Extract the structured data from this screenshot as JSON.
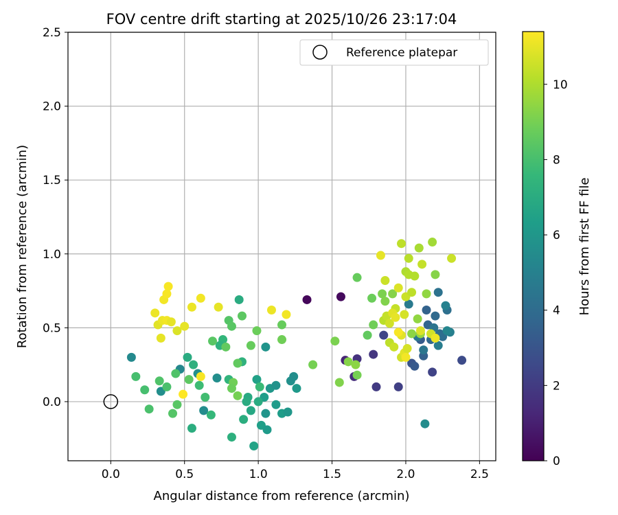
{
  "chart_data": {
    "type": "scatter",
    "title": "FOV centre drift starting at 2025/10/26 23:17:04",
    "xlabel": "Angular distance from reference (arcmin)",
    "ylabel": "Rotation from reference (arcmin)",
    "xlim": [
      -0.29,
      2.61
    ],
    "ylim": [
      -0.4,
      2.5
    ],
    "xticks": [
      0.0,
      0.5,
      1.0,
      1.5,
      2.0,
      2.5
    ],
    "xtick_labels": [
      "0.0",
      "0.5",
      "1.0",
      "1.5",
      "2.0",
      "2.5"
    ],
    "yticks": [
      0.0,
      0.5,
      1.0,
      1.5,
      2.0,
      2.5
    ],
    "ytick_labels": [
      "0.0",
      "0.5",
      "1.0",
      "1.5",
      "2.0",
      "2.5"
    ],
    "grid": true,
    "legend": {
      "position": "top-right",
      "label": "Reference platepar"
    },
    "reference": {
      "x": 0.0,
      "y": 0.0
    },
    "colorbar": {
      "label": "Hours from first FF file",
      "range": [
        0,
        11.4
      ],
      "ticks": [
        0,
        2,
        4,
        6,
        8,
        10
      ],
      "tick_labels": [
        "0",
        "2",
        "4",
        "6",
        "8",
        "10"
      ],
      "colormap": [
        "#440154",
        "#482878",
        "#3e4989",
        "#31688e",
        "#26828e",
        "#1f9e89",
        "#35b779",
        "#6ece58",
        "#b5de2b",
        "#fde725"
      ]
    },
    "points": [
      [
        1.33,
        0.69,
        0.2
      ],
      [
        1.56,
        0.71,
        0.3
      ],
      [
        1.59,
        0.28,
        1.2
      ],
      [
        1.65,
        0.17,
        1.5
      ],
      [
        1.67,
        0.29,
        1.7
      ],
      [
        1.78,
        0.32,
        1.8
      ],
      [
        1.8,
        0.1,
        2.0
      ],
      [
        1.95,
        0.1,
        2.2
      ],
      [
        2.18,
        0.2,
        2.3
      ],
      [
        2.38,
        0.28,
        2.6
      ],
      [
        1.85,
        0.45,
        2.4
      ],
      [
        2.04,
        0.26,
        3.0
      ],
      [
        2.06,
        0.24,
        3.2
      ],
      [
        2.1,
        0.42,
        3.3
      ],
      [
        2.12,
        0.31,
        3.5
      ],
      [
        2.14,
        0.62,
        3.6
      ],
      [
        2.15,
        0.52,
        3.7
      ],
      [
        2.17,
        0.42,
        3.8
      ],
      [
        2.2,
        0.58,
        3.9
      ],
      [
        2.23,
        0.46,
        4.0
      ],
      [
        2.25,
        0.44,
        4.1
      ],
      [
        2.28,
        0.62,
        4.2
      ],
      [
        2.22,
        0.74,
        4.3
      ],
      [
        2.19,
        0.5,
        4.4
      ],
      [
        2.12,
        0.35,
        4.5
      ],
      [
        2.08,
        0.44,
        4.6
      ],
      [
        2.02,
        0.66,
        4.7
      ],
      [
        2.22,
        0.38,
        4.8
      ],
      [
        2.3,
        0.47,
        4.9
      ],
      [
        2.27,
        0.65,
        5.0
      ],
      [
        2.28,
        0.48,
        5.2
      ],
      [
        2.13,
        -0.15,
        5.5
      ],
      [
        0.14,
        0.3,
        5.4
      ],
      [
        0.34,
        0.07,
        5.6
      ],
      [
        0.47,
        0.22,
        5.3
      ],
      [
        0.59,
        0.19,
        5.7
      ],
      [
        0.63,
        -0.06,
        5.5
      ],
      [
        0.72,
        0.16,
        5.6
      ],
      [
        1.05,
        0.37,
        5.9
      ],
      [
        1.08,
        0.09,
        6.0
      ],
      [
        1.12,
        0.11,
        5.8
      ],
      [
        1.22,
        0.14,
        5.7
      ],
      [
        1.24,
        0.17,
        5.6
      ],
      [
        1.26,
        0.09,
        6.1
      ],
      [
        1.12,
        -0.02,
        6.2
      ],
      [
        1.16,
        -0.08,
        6.3
      ],
      [
        1.2,
        -0.07,
        6.0
      ],
      [
        1.05,
        -0.08,
        5.9
      ],
      [
        1.02,
        -0.16,
        6.4
      ],
      [
        1.04,
        0.03,
        6.3
      ],
      [
        1.06,
        -0.19,
        6.2
      ],
      [
        0.99,
        0.15,
        6.5
      ],
      [
        0.97,
        -0.3,
        6.6
      ],
      [
        0.95,
        -0.06,
        6.8
      ],
      [
        0.93,
        0.03,
        6.9
      ],
      [
        0.92,
        0.0,
        7.0
      ],
      [
        0.9,
        -0.12,
        7.1
      ],
      [
        0.82,
        -0.24,
        7.2
      ],
      [
        0.8,
        0.15,
        7.4
      ],
      [
        0.76,
        0.42,
        7.5
      ],
      [
        0.74,
        0.38,
        7.3
      ],
      [
        0.68,
        -0.09,
        7.6
      ],
      [
        0.55,
        -0.18,
        7.1
      ],
      [
        0.52,
        0.3,
        7.0
      ],
      [
        0.56,
        0.25,
        7.2
      ],
      [
        0.6,
        0.11,
        7.8
      ],
      [
        0.64,
        0.03,
        7.9
      ],
      [
        0.87,
        0.69,
        7.0
      ],
      [
        0.89,
        0.27,
        7.3
      ],
      [
        1.01,
        0.1,
        7.7
      ],
      [
        1.0,
        0.0,
        7.0
      ],
      [
        0.17,
        0.17,
        8.0
      ],
      [
        0.23,
        0.08,
        8.0
      ],
      [
        0.26,
        -0.05,
        8.1
      ],
      [
        0.33,
        0.14,
        8.2
      ],
      [
        0.38,
        0.1,
        8.1
      ],
      [
        0.42,
        -0.08,
        8.3
      ],
      [
        0.45,
        -0.02,
        8.4
      ],
      [
        0.44,
        0.19,
        8.2
      ],
      [
        0.53,
        0.15,
        8.5
      ],
      [
        0.8,
        0.55,
        8.3
      ],
      [
        0.82,
        0.51,
        8.4
      ],
      [
        0.86,
        0.26,
        8.6
      ],
      [
        0.89,
        0.58,
        8.5
      ],
      [
        0.95,
        0.38,
        8.7
      ],
      [
        0.99,
        0.48,
        8.8
      ],
      [
        0.69,
        0.41,
        8.4
      ],
      [
        0.78,
        0.37,
        8.6
      ],
      [
        1.16,
        0.52,
        8.7
      ],
      [
        1.16,
        0.42,
        8.9
      ],
      [
        0.86,
        0.04,
        9.0
      ],
      [
        0.83,
        0.13,
        8.9
      ],
      [
        0.82,
        0.09,
        8.8
      ],
      [
        1.37,
        0.25,
        9.0
      ],
      [
        1.52,
        0.41,
        9.1
      ],
      [
        1.55,
        0.13,
        9.2
      ],
      [
        1.61,
        0.27,
        9.3
      ],
      [
        1.66,
        0.25,
        9.4
      ],
      [
        1.67,
        0.18,
        9.0
      ],
      [
        1.67,
        0.84,
        8.7
      ],
      [
        1.74,
        0.45,
        8.6
      ],
      [
        1.77,
        0.7,
        8.8
      ],
      [
        1.78,
        0.52,
        8.9
      ],
      [
        1.84,
        0.73,
        9.1
      ],
      [
        1.86,
        0.68,
        9.2
      ],
      [
        1.91,
        0.73,
        9.3
      ],
      [
        2.04,
        0.46,
        9.4
      ],
      [
        2.08,
        0.56,
        9.5
      ],
      [
        2.1,
        0.46,
        9.6
      ],
      [
        2.14,
        0.73,
        9.5
      ],
      [
        2.2,
        0.86,
        9.3
      ],
      [
        2.18,
        1.08,
        9.8
      ],
      [
        2.09,
        1.04,
        9.9
      ],
      [
        2.0,
        0.88,
        10.0
      ],
      [
        2.02,
        0.97,
        10.2
      ],
      [
        1.97,
        1.07,
        10.3
      ],
      [
        2.06,
        0.85,
        10.1
      ],
      [
        2.11,
        0.93,
        10.4
      ],
      [
        2.17,
        0.46,
        10.6
      ],
      [
        2.31,
        0.97,
        10.5
      ],
      [
        1.93,
        0.63,
        10.4
      ],
      [
        1.95,
        0.77,
        10.8
      ],
      [
        1.97,
        0.45,
        10.9
      ],
      [
        1.99,
        0.59,
        10.7
      ],
      [
        2.0,
        0.71,
        10.5
      ],
      [
        1.85,
        0.55,
        10.2
      ],
      [
        1.87,
        0.58,
        10.4
      ],
      [
        1.89,
        0.53,
        10.6
      ],
      [
        1.91,
        0.6,
        10.9
      ],
      [
        1.93,
        0.57,
        11.0
      ],
      [
        1.89,
        0.4,
        10.3
      ],
      [
        1.92,
        0.37,
        10.5
      ],
      [
        1.97,
        0.3,
        10.6
      ],
      [
        1.99,
        0.33,
        10.9
      ],
      [
        2.01,
        0.36,
        10.7
      ],
      [
        2.1,
        0.48,
        10.8
      ],
      [
        2.2,
        0.43,
        11.1
      ],
      [
        1.83,
        0.99,
        11.0
      ],
      [
        1.86,
        0.82,
        10.5
      ],
      [
        2.02,
        0.86,
        10.1
      ],
      [
        2.04,
        0.74,
        10.3
      ],
      [
        2.0,
        0.3,
        11.2
      ],
      [
        1.95,
        0.47,
        11.3
      ],
      [
        0.3,
        0.6,
        11.1
      ],
      [
        0.32,
        0.52,
        10.9
      ],
      [
        0.34,
        0.43,
        11.0
      ],
      [
        0.36,
        0.69,
        11.2
      ],
      [
        0.38,
        0.73,
        11.3
      ],
      [
        0.39,
        0.78,
        11.3
      ],
      [
        0.35,
        0.55,
        11.1
      ],
      [
        0.38,
        0.55,
        11.2
      ],
      [
        0.41,
        0.54,
        11.0
      ],
      [
        0.45,
        0.48,
        10.8
      ],
      [
        0.5,
        0.51,
        11.0
      ],
      [
        0.55,
        0.64,
        11.1
      ],
      [
        0.61,
        0.7,
        11.2
      ],
      [
        0.73,
        0.64,
        11.0
      ],
      [
        1.09,
        0.62,
        11.1
      ],
      [
        1.19,
        0.59,
        11.2
      ],
      [
        0.61,
        0.17,
        11.3
      ],
      [
        0.49,
        0.05,
        11.4
      ]
    ]
  }
}
